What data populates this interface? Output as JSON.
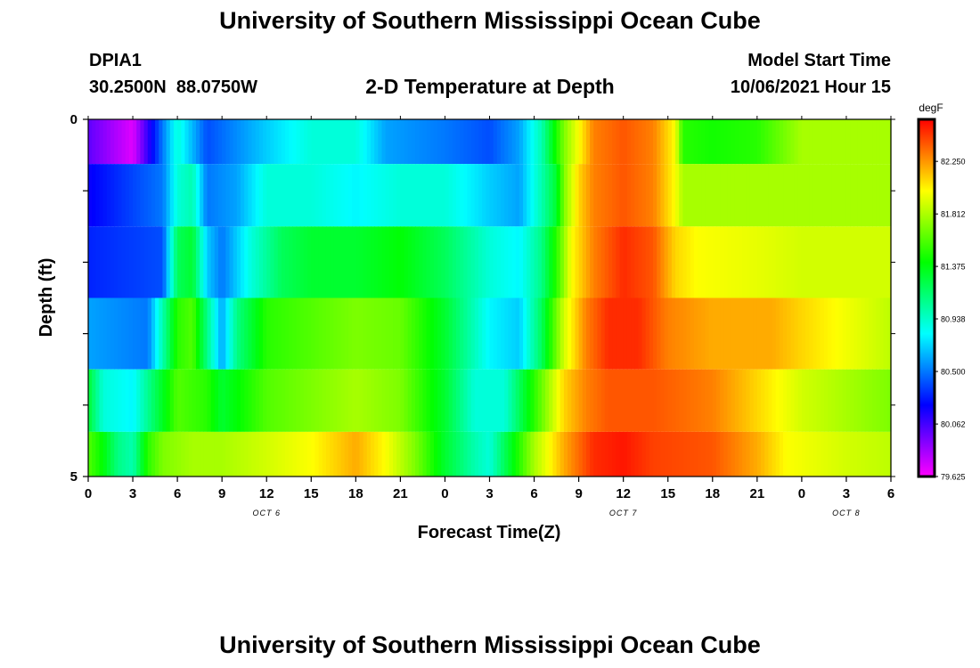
{
  "header": {
    "title": "University of Southern Mississippi Ocean Cube",
    "station_id": "DPIA1",
    "station_coords": "30.2500N  88.0750W",
    "plot_title": "2-D Temperature at Depth",
    "model_start_label": "Model Start Time",
    "model_start_value": "10/06/2021 Hour 15"
  },
  "footer": {
    "title": "University of Southern Mississippi Ocean Cube"
  },
  "chart_data": {
    "type": "heatmap",
    "title": "2-D Temperature at Depth",
    "xlabel": "Forecast Time(Z)",
    "ylabel": "Depth (ft)",
    "x_tick_labels": [
      "0",
      "3",
      "6",
      "9",
      "12",
      "15",
      "18",
      "21",
      "0",
      "3",
      "6",
      "9",
      "12",
      "15",
      "18",
      "21",
      "0",
      "3",
      "6"
    ],
    "x_hours": [
      0,
      3,
      6,
      9,
      12,
      15,
      18,
      21,
      24,
      27,
      30,
      33,
      36,
      39,
      42,
      45,
      48,
      51,
      54
    ],
    "xlim": [
      0,
      54
    ],
    "date_labels": [
      {
        "label": "OCT 6",
        "hour": 12
      },
      {
        "label": "OCT 7",
        "hour": 36
      },
      {
        "label": "OCT 8",
        "hour": 51
      }
    ],
    "y_tick_labels": [
      "0",
      "5"
    ],
    "ylim": [
      0,
      5
    ],
    "depth_layers": [
      0.25,
      1.0,
      2.0,
      3.0,
      4.0,
      4.75
    ],
    "colorbar": {
      "unit": "degF",
      "tick_labels": [
        "82.250",
        "81.812",
        "81.375",
        "80.938",
        "80.500",
        "80.062",
        "79.625"
      ],
      "tick_values": [
        82.25,
        81.812,
        81.375,
        80.938,
        80.5,
        80.062,
        79.625
      ],
      "range": [
        79.625,
        82.6
      ]
    },
    "series": [
      {
        "depth": 0.25,
        "points": [
          [
            0,
            80.0
          ],
          [
            3,
            79.7
          ],
          [
            5,
            80.5
          ],
          [
            6,
            80.9
          ],
          [
            8,
            80.4
          ],
          [
            12,
            80.7
          ],
          [
            15,
            80.9
          ],
          [
            18,
            80.9
          ],
          [
            20,
            80.6
          ],
          [
            24,
            80.5
          ],
          [
            27,
            80.4
          ],
          [
            29,
            80.6
          ],
          [
            30.5,
            81.0
          ],
          [
            32,
            81.7
          ],
          [
            33,
            82.0
          ],
          [
            34,
            82.3
          ],
          [
            36,
            82.4
          ],
          [
            38,
            82.3
          ],
          [
            39.5,
            82.0
          ],
          [
            40,
            81.5
          ],
          [
            42,
            81.45
          ],
          [
            45,
            81.5
          ],
          [
            47,
            81.7
          ],
          [
            48,
            81.8
          ],
          [
            54,
            81.8
          ]
        ]
      },
      {
        "depth": 1.0,
        "points": [
          [
            0,
            80.2
          ],
          [
            5,
            80.5
          ],
          [
            6,
            80.9
          ],
          [
            7,
            81.0
          ],
          [
            8,
            80.5
          ],
          [
            10,
            80.6
          ],
          [
            12,
            80.9
          ],
          [
            15,
            80.9
          ],
          [
            18,
            80.8
          ],
          [
            21,
            80.9
          ],
          [
            24,
            80.9
          ],
          [
            27,
            80.7
          ],
          [
            29,
            80.6
          ],
          [
            30.5,
            81.0
          ],
          [
            31.5,
            81.3
          ],
          [
            32,
            81.7
          ],
          [
            33,
            82.1
          ],
          [
            34,
            82.3
          ],
          [
            36,
            82.4
          ],
          [
            38,
            82.3
          ],
          [
            39.5,
            82.0
          ],
          [
            40,
            81.8
          ],
          [
            42,
            81.8
          ],
          [
            54,
            81.8
          ]
        ]
      },
      {
        "depth": 2.0,
        "points": [
          [
            0,
            80.3
          ],
          [
            5,
            80.4
          ],
          [
            6,
            81.2
          ],
          [
            7,
            81.3
          ],
          [
            8,
            80.7
          ],
          [
            9,
            80.5
          ],
          [
            11,
            80.9
          ],
          [
            13,
            81.2
          ],
          [
            15,
            81.3
          ],
          [
            18,
            81.3
          ],
          [
            21,
            81.4
          ],
          [
            24,
            81.2
          ],
          [
            27,
            80.9
          ],
          [
            29,
            80.8
          ],
          [
            30.5,
            81.1
          ],
          [
            31.5,
            81.5
          ],
          [
            32.5,
            82.0
          ],
          [
            34,
            82.3
          ],
          [
            36,
            82.5
          ],
          [
            38,
            82.4
          ],
          [
            39.5,
            82.1
          ],
          [
            41,
            82.0
          ],
          [
            45,
            81.95
          ],
          [
            48,
            81.9
          ],
          [
            54,
            81.9
          ]
        ]
      },
      {
        "depth": 3.0,
        "points": [
          [
            0,
            80.6
          ],
          [
            4,
            80.5
          ],
          [
            5,
            81.0
          ],
          [
            6,
            81.5
          ],
          [
            7,
            81.6
          ],
          [
            8,
            81.1
          ],
          [
            9,
            80.6
          ],
          [
            10,
            81.1
          ],
          [
            12,
            81.5
          ],
          [
            15,
            81.6
          ],
          [
            18,
            81.7
          ],
          [
            21,
            81.65
          ],
          [
            24,
            81.3
          ],
          [
            27,
            80.8
          ],
          [
            29,
            80.7
          ],
          [
            30.5,
            81.2
          ],
          [
            32,
            81.9
          ],
          [
            33.5,
            82.3
          ],
          [
            35,
            82.5
          ],
          [
            37,
            82.5
          ],
          [
            39,
            82.3
          ],
          [
            42,
            82.2
          ],
          [
            46,
            82.2
          ],
          [
            48,
            82.1
          ],
          [
            54,
            81.85
          ]
        ]
      },
      {
        "depth": 4.0,
        "points": [
          [
            0,
            81.3
          ],
          [
            1,
            80.9
          ],
          [
            3,
            80.8
          ],
          [
            4.5,
            81.2
          ],
          [
            6,
            81.6
          ],
          [
            8,
            81.5
          ],
          [
            9,
            81.3
          ],
          [
            12,
            81.6
          ],
          [
            15,
            81.7
          ],
          [
            18,
            81.8
          ],
          [
            21,
            81.7
          ],
          [
            24,
            81.3
          ],
          [
            26,
            80.9
          ],
          [
            28,
            80.9
          ],
          [
            30,
            81.5
          ],
          [
            32,
            82.1
          ],
          [
            33.5,
            82.3
          ],
          [
            35,
            82.4
          ],
          [
            38,
            82.4
          ],
          [
            42,
            82.3
          ],
          [
            45,
            82.1
          ],
          [
            48,
            81.9
          ],
          [
            54,
            81.7
          ]
        ]
      },
      {
        "depth": 4.75,
        "points": [
          [
            0,
            81.6
          ],
          [
            1,
            81.4
          ],
          [
            2,
            81.1
          ],
          [
            3,
            81.0
          ],
          [
            4,
            81.5
          ],
          [
            5,
            81.7
          ],
          [
            7,
            81.8
          ],
          [
            9,
            81.8
          ],
          [
            12,
            81.9
          ],
          [
            15,
            82.0
          ],
          [
            18,
            82.2
          ],
          [
            20,
            82.0
          ],
          [
            22,
            81.7
          ],
          [
            24,
            81.3
          ],
          [
            26,
            81.0
          ],
          [
            27,
            80.9
          ],
          [
            28,
            81.2
          ],
          [
            29,
            81.5
          ],
          [
            30,
            81.8
          ],
          [
            32,
            82.2
          ],
          [
            34,
            82.5
          ],
          [
            36,
            82.55
          ],
          [
            38,
            82.45
          ],
          [
            42,
            82.4
          ],
          [
            45,
            82.2
          ],
          [
            47,
            82.0
          ],
          [
            49,
            81.95
          ],
          [
            51,
            81.9
          ],
          [
            54,
            81.85
          ]
        ]
      }
    ]
  }
}
